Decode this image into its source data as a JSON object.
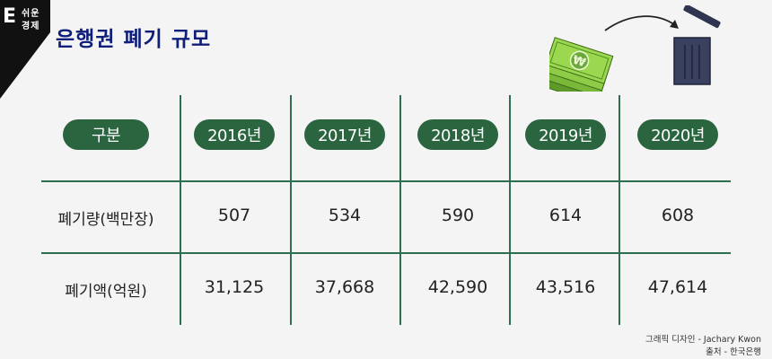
{
  "brand": {
    "logo_letter": "E",
    "line1": "쉬운",
    "line2": "경제"
  },
  "title": "은행권 폐기 규모",
  "chart_data": {
    "type": "table",
    "header_label": "구분",
    "columns": [
      "2016년",
      "2017년",
      "2018년",
      "2019년",
      "2020년"
    ],
    "rows": [
      {
        "label": "폐기량(백만장)",
        "values": [
          "507",
          "534",
          "590",
          "614",
          "608"
        ]
      },
      {
        "label": "폐기액(억원)",
        "values": [
          "31,125",
          "37,668",
          "42,590",
          "43,516",
          "47,614"
        ]
      }
    ]
  },
  "footer": {
    "credit": "그래픽 디자인 - Jachary Kwon",
    "source": "출처 - 한국은행"
  },
  "colors": {
    "accent": "#2a6540",
    "title": "#0f1e7a",
    "background": "#f4f4f4"
  },
  "illustration": {
    "icons": [
      "money-stack-icon",
      "arrow-icon",
      "trash-bin-icon"
    ]
  }
}
